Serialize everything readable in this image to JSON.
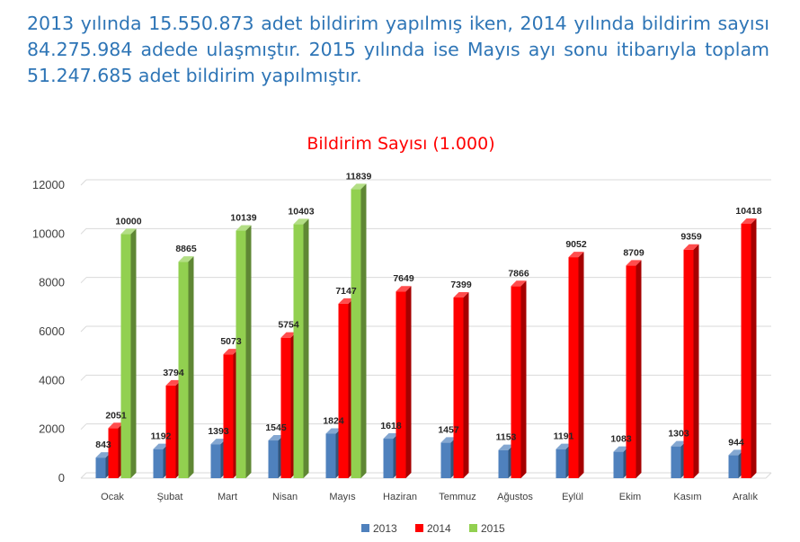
{
  "intro_text": "2013 yılında 15.550.873 adet bildirim yapılmış iken, 2014 yılında bildirim sayısı 84.275.984 adede ulaşmıştır. 2015 yılında ise Mayıs ayı sonu itibarıyla toplam 51.247.685 adet bildirim yapılmıştır.",
  "chart_data": {
    "type": "bar",
    "title": "Bildirim Sayısı (1.000)",
    "title_color": "#ff0000",
    "categories": [
      "Ocak",
      "Şubat",
      "Mart",
      "Nisan",
      "Mayıs",
      "Haziran",
      "Temmuz",
      "Ağustos",
      "Eylül",
      "Ekim",
      "Kasım",
      "Aralık"
    ],
    "series": [
      {
        "name": "2013",
        "color": "#4f81bd",
        "values": [
          843,
          1192,
          1393,
          1545,
          1824,
          1618,
          1457,
          1153,
          1191,
          1083,
          1303,
          944
        ]
      },
      {
        "name": "2014",
        "color": "#ff0000",
        "values": [
          2051,
          3794,
          5073,
          5754,
          7147,
          7649,
          7399,
          7866,
          9052,
          8709,
          9359,
          10418
        ]
      },
      {
        "name": "2015",
        "color": "#92d050",
        "values": [
          10000,
          8865,
          10139,
          10403,
          11839,
          null,
          null,
          null,
          null,
          null,
          null,
          null
        ]
      }
    ],
    "ylim": [
      0,
      12000
    ],
    "yticks": [
      0,
      2000,
      4000,
      6000,
      8000,
      10000,
      12000
    ],
    "grid": true,
    "legend_position": "bottom",
    "style": "3d-clustered-column"
  }
}
